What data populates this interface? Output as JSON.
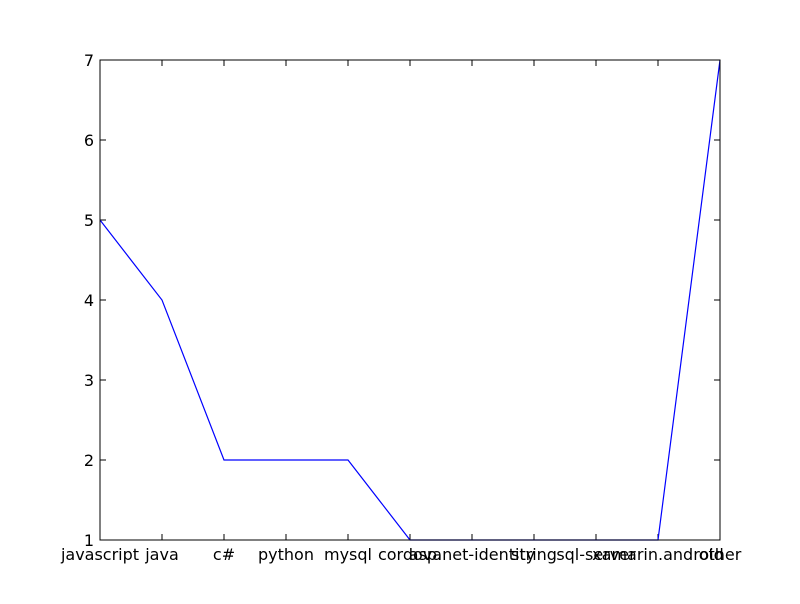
{
  "chart_data": {
    "type": "line",
    "title": "",
    "xlabel": "",
    "ylabel": "",
    "categories": [
      "javascript",
      "java",
      "c#",
      "python",
      "mysql",
      "cordova",
      "asp.net-identity",
      "string",
      "sql-server",
      "xamarin.android",
      "other"
    ],
    "series": [
      {
        "values": [
          5,
          4,
          2,
          2,
          2,
          1,
          1,
          1,
          1,
          1,
          7
        ],
        "color": "#0000ff"
      }
    ],
    "ylim": [
      1,
      7
    ],
    "yticks": [
      1,
      2,
      3,
      4,
      5,
      6,
      7
    ],
    "grid": false,
    "legend": "none"
  }
}
